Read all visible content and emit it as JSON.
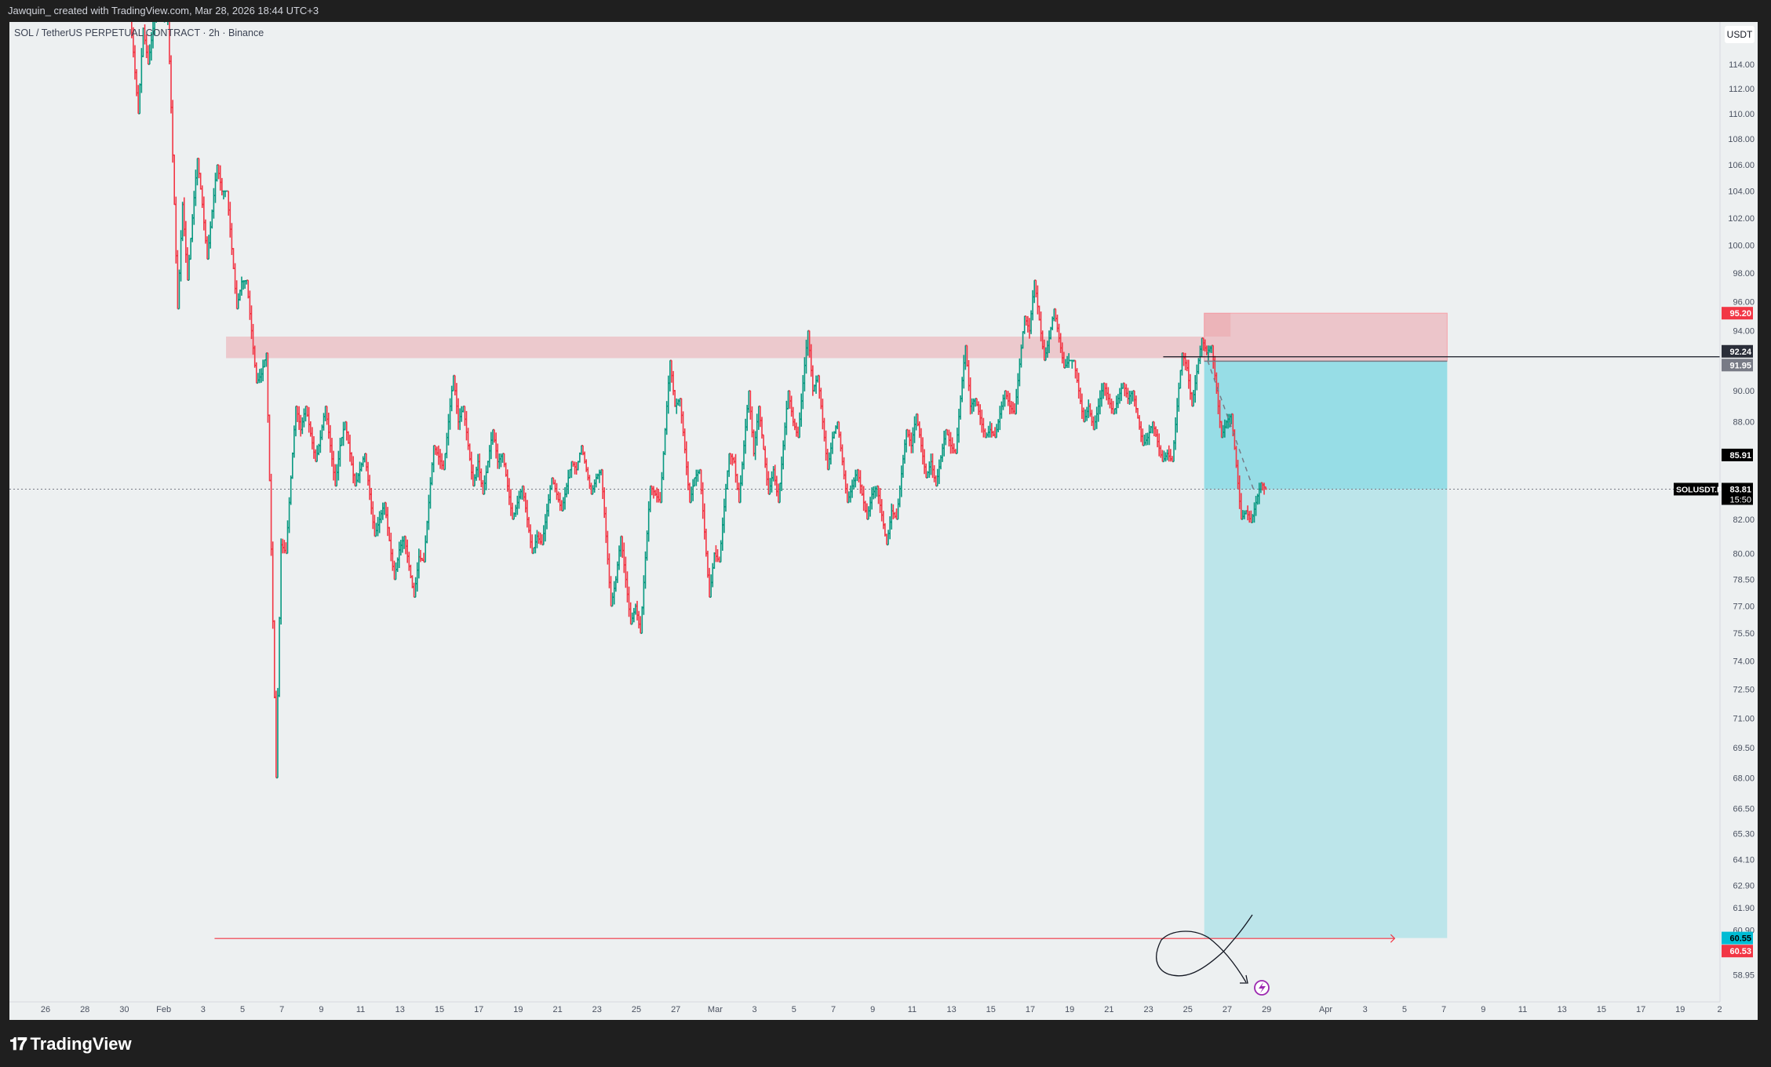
{
  "header": {
    "caption": "Jawquin_ created with TradingView.com, Mar 28, 2026 18:44 UTC+3"
  },
  "legend": {
    "title": "SOL / TetherUS PERPETUAL CONTRACT · 2h · Binance"
  },
  "price_axis": {
    "unit": "USDT",
    "ticks": [
      "114.00",
      "112.00",
      "110.00",
      "108.00",
      "106.00",
      "104.00",
      "102.00",
      "100.00",
      "98.00",
      "96.00",
      "94.00",
      "90.00",
      "88.00",
      "82.00",
      "80.00",
      "78.50",
      "77.00",
      "75.50",
      "74.00",
      "72.50",
      "71.00",
      "69.50",
      "68.00",
      "66.50",
      "65.30",
      "64.10",
      "62.90",
      "61.90",
      "60.90",
      "58.95"
    ],
    "badges": [
      {
        "label": "95.20",
        "price": 95.2,
        "bg": "#f23645",
        "fg": "#ffffff"
      },
      {
        "label": "92.24",
        "price": 92.24,
        "bg": "#2a2e39",
        "fg": "#ffffff"
      },
      {
        "label": "91.95",
        "price": 91.95,
        "bg": "#787b86",
        "fg": "#ffffff"
      },
      {
        "label": "85.91",
        "price": 85.91,
        "bg": "#000000",
        "fg": "#ffffff"
      },
      {
        "label": "60.55",
        "price": 60.55,
        "bg": "#00bcd4",
        "fg": "#000000"
      },
      {
        "label": "60.53",
        "price": 60.53,
        "bg": "#f23645",
        "fg": "#ffffff"
      }
    ],
    "last_price": {
      "symbol": "SOLUSDT.P",
      "price": "83.81",
      "countdown": "15:50"
    }
  },
  "time_axis": [
    {
      "label": "26",
      "date": "2026-01-26"
    },
    {
      "label": "28",
      "date": "2026-01-28"
    },
    {
      "label": "30",
      "date": "2026-01-30"
    },
    {
      "label": "Feb",
      "date": "2026-02-01"
    },
    {
      "label": "3",
      "date": "2026-02-03"
    },
    {
      "label": "5",
      "date": "2026-02-05"
    },
    {
      "label": "7",
      "date": "2026-02-07"
    },
    {
      "label": "9",
      "date": "2026-02-09"
    },
    {
      "label": "11",
      "date": "2026-02-11"
    },
    {
      "label": "13",
      "date": "2026-02-13"
    },
    {
      "label": "15",
      "date": "2026-02-15"
    },
    {
      "label": "17",
      "date": "2026-02-17"
    },
    {
      "label": "19",
      "date": "2026-02-19"
    },
    {
      "label": "21",
      "date": "2026-02-21"
    },
    {
      "label": "23",
      "date": "2026-02-23"
    },
    {
      "label": "25",
      "date": "2026-02-25"
    },
    {
      "label": "27",
      "date": "2026-02-27"
    },
    {
      "label": "Mar",
      "date": "2026-03-01"
    },
    {
      "label": "3",
      "date": "2026-03-03"
    },
    {
      "label": "5",
      "date": "2026-03-05"
    },
    {
      "label": "7",
      "date": "2026-03-07"
    },
    {
      "label": "9",
      "date": "2026-03-09"
    },
    {
      "label": "11",
      "date": "2026-03-11"
    },
    {
      "label": "13",
      "date": "2026-03-13"
    },
    {
      "label": "15",
      "date": "2026-03-15"
    },
    {
      "label": "17",
      "date": "2026-03-17"
    },
    {
      "label": "19",
      "date": "2026-03-19"
    },
    {
      "label": "21",
      "date": "2026-03-21"
    },
    {
      "label": "23",
      "date": "2026-03-23"
    },
    {
      "label": "25",
      "date": "2026-03-25"
    },
    {
      "label": "27",
      "date": "2026-03-27"
    },
    {
      "label": "29",
      "date": "2026-03-29"
    },
    {
      "label": "Apr",
      "date": "2026-04-01"
    },
    {
      "label": "3",
      "date": "2026-04-03"
    },
    {
      "label": "5",
      "date": "2026-04-05"
    },
    {
      "label": "7",
      "date": "2026-04-07"
    },
    {
      "label": "9",
      "date": "2026-04-09"
    },
    {
      "label": "11",
      "date": "2026-04-11"
    },
    {
      "label": "13",
      "date": "2026-04-13"
    },
    {
      "label": "15",
      "date": "2026-04-15"
    },
    {
      "label": "17",
      "date": "2026-04-17"
    },
    {
      "label": "19",
      "date": "2026-04-19"
    },
    {
      "label": "2",
      "date": "2026-04-21"
    }
  ],
  "chart_data": {
    "type": "ohlc-bar",
    "interval": "2h",
    "y_scale": "log",
    "ylim": [
      57.5,
      119.5
    ],
    "colors": {
      "up": "#089981",
      "down": "#f23645"
    },
    "daily_ohlc": [
      [
        "2026-01-30",
        119,
        120,
        110,
        117
      ],
      [
        "2026-01-31",
        117,
        120,
        114,
        118
      ],
      [
        "2026-02-01",
        118,
        118,
        95.5,
        103
      ],
      [
        "2026-02-02",
        103,
        106.5,
        97.5,
        103
      ],
      [
        "2026-02-03",
        103,
        106,
        99,
        104
      ],
      [
        "2026-02-04",
        104,
        104,
        95.5,
        97.4
      ],
      [
        "2026-02-05",
        97.4,
        97.5,
        90.5,
        91.1
      ],
      [
        "2026-02-06",
        91.1,
        92.5,
        68,
        80.5
      ],
      [
        "2026-02-07",
        80.5,
        89,
        80,
        87.5
      ],
      [
        "2026-02-08",
        87.5,
        89,
        85.5,
        87
      ],
      [
        "2026-02-09",
        87,
        89,
        84,
        86.5
      ],
      [
        "2026-02-10",
        86.5,
        88,
        84,
        85
      ],
      [
        "2026-02-11",
        85,
        86,
        81,
        82
      ],
      [
        "2026-02-12",
        82,
        83,
        78.5,
        80.2
      ],
      [
        "2026-02-13",
        80.2,
        81,
        77.5,
        79.8
      ],
      [
        "2026-02-14",
        79.8,
        86.5,
        79.5,
        85.8
      ],
      [
        "2026-02-15",
        85.8,
        91,
        85,
        88
      ],
      [
        "2026-02-16",
        88,
        89,
        84,
        85.5
      ],
      [
        "2026-02-17",
        85.5,
        87.5,
        83.5,
        85.5
      ],
      [
        "2026-02-18",
        85.5,
        86,
        82,
        83
      ],
      [
        "2026-02-19",
        83,
        84,
        80,
        81
      ],
      [
        "2026-02-20",
        81,
        84.5,
        80.5,
        83.5
      ],
      [
        "2026-02-21",
        83.5,
        85.5,
        82.5,
        85
      ],
      [
        "2026-02-22",
        85,
        86.5,
        83.5,
        84.5
      ],
      [
        "2026-02-23",
        84.5,
        85,
        77,
        78.5
      ],
      [
        "2026-02-24",
        78.5,
        81,
        76,
        77
      ],
      [
        "2026-02-25",
        77,
        84,
        75.5,
        83.5
      ],
      [
        "2026-02-26",
        83.5,
        92,
        83,
        89
      ],
      [
        "2026-02-27",
        89,
        89.5,
        83,
        84.5
      ],
      [
        "2026-02-28",
        84.5,
        85,
        77.5,
        80
      ],
      [
        "2026-03-01",
        80,
        86,
        79.5,
        85.5
      ],
      [
        "2026-03-02",
        85.5,
        90,
        83,
        86
      ],
      [
        "2026-03-03",
        86,
        89,
        83.5,
        85
      ],
      [
        "2026-03-04",
        85,
        90,
        83,
        88
      ],
      [
        "2026-03-05",
        88,
        94,
        87,
        90
      ],
      [
        "2026-03-06",
        90,
        91,
        85,
        87
      ],
      [
        "2026-03-07",
        87,
        88,
        83,
        84
      ],
      [
        "2026-03-08",
        84,
        85,
        82,
        83.5
      ],
      [
        "2026-03-09",
        83.5,
        84,
        80.5,
        82.5
      ],
      [
        "2026-03-10",
        82.5,
        87.5,
        82,
        86.5
      ],
      [
        "2026-03-11",
        86.5,
        88.5,
        84.5,
        85.5
      ],
      [
        "2026-03-12",
        85.5,
        87.5,
        84,
        86.5
      ],
      [
        "2026-03-13",
        86.5,
        93,
        86,
        89
      ],
      [
        "2026-03-14",
        89,
        89.5,
        87,
        87.5
      ],
      [
        "2026-03-15",
        87.5,
        90,
        87,
        89
      ],
      [
        "2026-03-16",
        89,
        95,
        88.5,
        94
      ],
      [
        "2026-03-17",
        94,
        97.5,
        92,
        93.5
      ],
      [
        "2026-03-18",
        93.5,
        95.5,
        91.5,
        92
      ],
      [
        "2026-03-19",
        92,
        92,
        88,
        89
      ],
      [
        "2026-03-20",
        89,
        90.5,
        87.5,
        89.5
      ],
      [
        "2026-03-21",
        89.5,
        90.5,
        88.5,
        89.5
      ],
      [
        "2026-03-22",
        89.5,
        90,
        86.5,
        87
      ],
      [
        "2026-03-23",
        87,
        88,
        85.5,
        86
      ],
      [
        "2026-03-24",
        86,
        92.5,
        85.5,
        91.5
      ],
      [
        "2026-03-25",
        91.5,
        93.5,
        89,
        92.5
      ],
      [
        "2026-03-26",
        92.5,
        93,
        87,
        88
      ],
      [
        "2026-03-27",
        88,
        88.5,
        82,
        82.5
      ],
      [
        "2026-03-28",
        82.5,
        84.2,
        81.8,
        83.81
      ]
    ],
    "annotations": {
      "resistance_zone": {
        "from": "2026-02-04T04:00",
        "to": "2026-03-27T04:00",
        "low": 92.15,
        "high": 93.6,
        "color": "#ecc9cd"
      },
      "short_position": {
        "from": "2026-03-25T20:00",
        "to": "2026-04-07T04:00",
        "entry": 91.95,
        "stop": 95.2,
        "target": 60.55,
        "stop_color": "#ecc5ca",
        "target_color": "#bce5ea",
        "active_color": "#97dde6"
      },
      "entry_line": {
        "from": "2026-03-23T18:00",
        "price": 92.24,
        "color": "#131722"
      },
      "target_arrow": {
        "from": "2026-02-03T14:00",
        "to": "2026-04-04T12:00",
        "price": 60.53,
        "color": "#f23645"
      },
      "projection": {
        "from": [
          "2026-03-26T00:00",
          92.0
        ],
        "to": [
          "2026-03-28T08:00",
          83.8
        ]
      },
      "current_price": 83.81
    }
  },
  "footer": {
    "logo": "TradingView"
  }
}
